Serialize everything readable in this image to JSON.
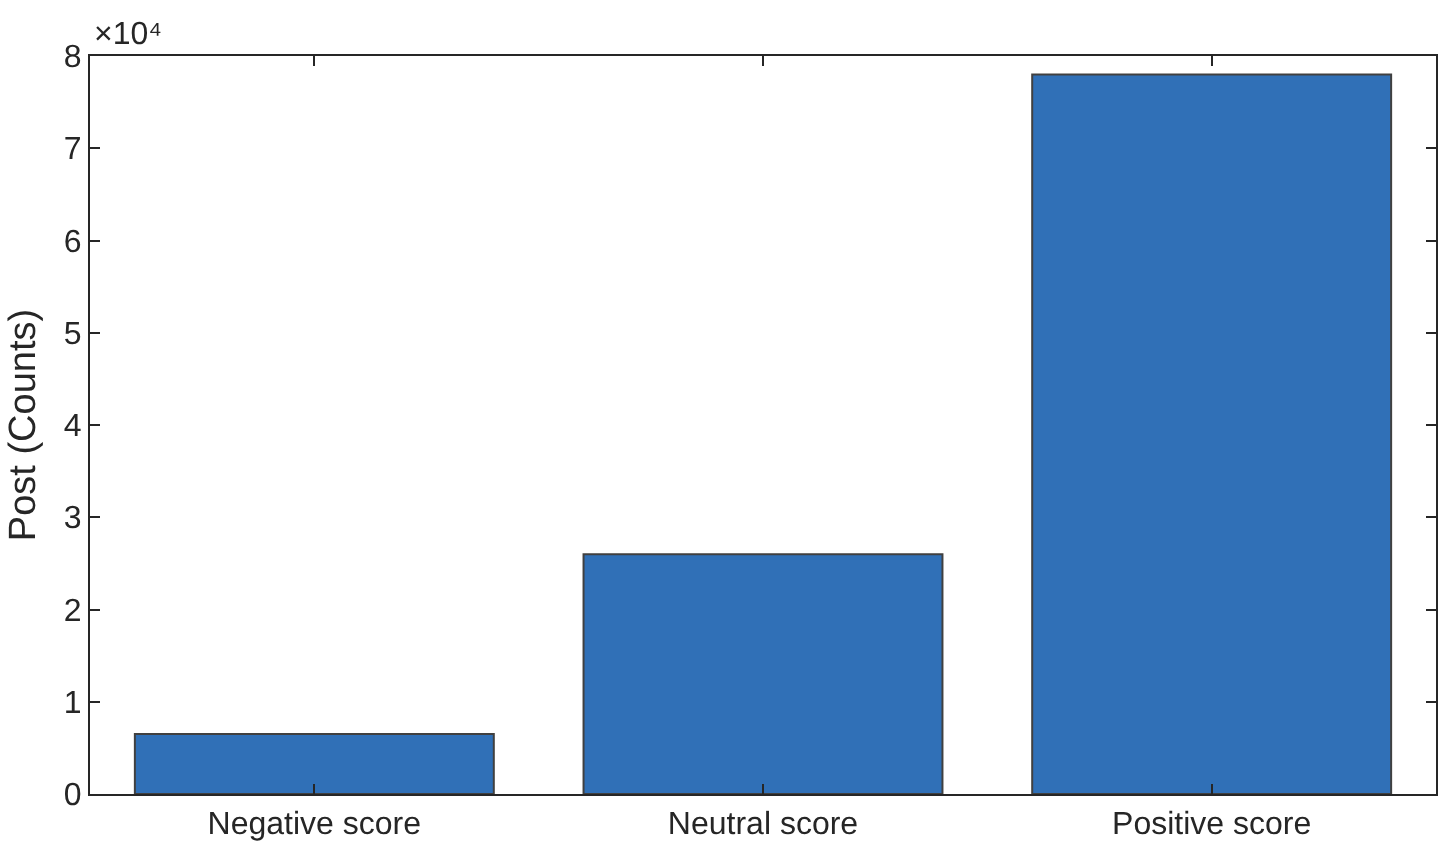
{
  "chart_data": {
    "type": "bar",
    "ylabel": "Post (Counts)",
    "categories": [
      "Negative score",
      "Neutral score",
      "Positive score"
    ],
    "values": [
      0.65,
      2.6,
      7.8
    ],
    "color": "#3070b7",
    "ylim": [
      0,
      8
    ],
    "yticks": [
      0,
      1,
      2,
      3,
      4,
      5,
      6,
      7,
      8
    ],
    "grid": false,
    "annotations": [
      "×10⁴"
    ]
  }
}
